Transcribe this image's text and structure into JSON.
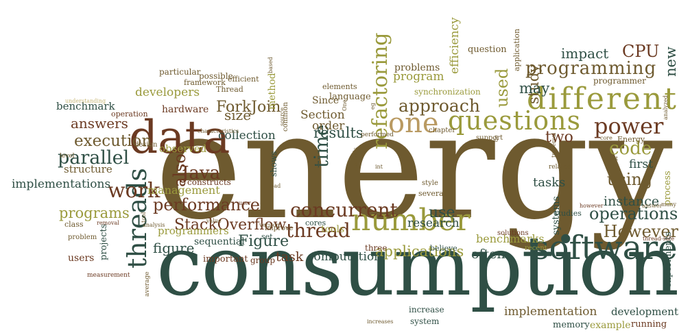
{
  "palette": {
    "brown": "#6e5a2f",
    "green": "#2f4f45",
    "olive": "#9a9a3c",
    "tan": "#b99a62",
    "rust": "#6b3a22",
    "khaki": "#c8b878"
  },
  "words": [
    {
      "text": "energy",
      "c": "brown"
    },
    {
      "text": "consumption",
      "c": "green"
    },
    {
      "text": "data",
      "c": "rust"
    },
    {
      "text": "software",
      "c": "green"
    },
    {
      "text": "number",
      "c": "olive"
    },
    {
      "text": "different",
      "c": "olive"
    },
    {
      "text": "questions",
      "c": "olive"
    },
    {
      "text": "one",
      "c": "tan"
    },
    {
      "text": "threads",
      "c": "green"
    },
    {
      "text": "refactoring",
      "c": "olive"
    },
    {
      "text": "power",
      "c": "rust"
    },
    {
      "text": "concurrent",
      "c": "rust"
    },
    {
      "text": "programming",
      "c": "brown"
    },
    {
      "text": "thread",
      "c": "rust"
    },
    {
      "text": "performance",
      "c": "rust"
    },
    {
      "text": "time",
      "c": "green"
    },
    {
      "text": "approach",
      "c": "brown"
    },
    {
      "text": "code",
      "c": "olive"
    },
    {
      "text": "work",
      "c": "rust"
    },
    {
      "text": "execution",
      "c": "brown"
    },
    {
      "text": "parallel",
      "c": "green"
    },
    {
      "text": "also",
      "c": "rust"
    },
    {
      "text": "StackOverflow",
      "c": "rust"
    },
    {
      "text": "used",
      "c": "olive"
    },
    {
      "text": "study",
      "c": "brown"
    },
    {
      "text": "operations",
      "c": "green"
    },
    {
      "text": "However",
      "c": "brown"
    },
    {
      "text": "using",
      "c": "brown"
    },
    {
      "text": "CPU",
      "c": "rust"
    },
    {
      "text": "impact",
      "c": "green"
    },
    {
      "text": "programs",
      "c": "olive"
    },
    {
      "text": "Java",
      "c": "rust"
    },
    {
      "text": "ForkJoin",
      "c": "brown"
    },
    {
      "text": "results",
      "c": "green"
    },
    {
      "text": "answers",
      "c": "rust"
    },
    {
      "text": "size",
      "c": "brown"
    },
    {
      "text": "Figure",
      "c": "green"
    },
    {
      "text": "figure",
      "c": "green"
    },
    {
      "text": "use",
      "c": "green"
    },
    {
      "text": "instance",
      "c": "green"
    },
    {
      "text": "two",
      "c": "rust"
    },
    {
      "text": "tasks",
      "c": "green"
    },
    {
      "text": "first",
      "c": "green"
    },
    {
      "text": "applications",
      "c": "olive"
    },
    {
      "text": "implementation",
      "c": "brown"
    },
    {
      "text": "computation",
      "c": "green"
    },
    {
      "text": "task",
      "c": "rust"
    },
    {
      "text": "program",
      "c": "olive"
    },
    {
      "text": "developers",
      "c": "olive"
    },
    {
      "text": "implementations",
      "c": "green"
    },
    {
      "text": "management",
      "c": "olive"
    },
    {
      "text": "collection",
      "c": "green"
    },
    {
      "text": "Section",
      "c": "brown"
    },
    {
      "text": "order",
      "c": "brown"
    },
    {
      "text": "may",
      "c": "green"
    },
    {
      "text": "new",
      "c": "green"
    },
    {
      "text": "efficiency",
      "c": "olive"
    },
    {
      "text": "problems",
      "c": "brown"
    },
    {
      "text": "benchmarks",
      "c": "olive"
    },
    {
      "text": "often",
      "c": "green"
    },
    {
      "text": "observed",
      "c": "olive"
    },
    {
      "text": "hardware",
      "c": "rust"
    },
    {
      "text": "benchmark",
      "c": "green"
    },
    {
      "text": "structure",
      "c": "brown"
    },
    {
      "text": "research",
      "c": "green"
    },
    {
      "text": "programmers",
      "c": "olive"
    },
    {
      "text": "sequential",
      "c": "green"
    },
    {
      "text": "users",
      "c": "rust"
    },
    {
      "text": "development",
      "c": "green"
    },
    {
      "text": "memory",
      "c": "green"
    },
    {
      "text": "example",
      "c": "olive"
    },
    {
      "text": "running",
      "c": "rust"
    },
    {
      "text": "experiments",
      "c": "green"
    },
    {
      "text": "process",
      "c": "olive"
    },
    {
      "text": "systems",
      "c": "green"
    },
    {
      "text": "method",
      "c": "olive"
    },
    {
      "text": "tools",
      "c": "olive"
    },
    {
      "text": "application",
      "c": "brown"
    },
    {
      "text": "question",
      "c": "brown"
    },
    {
      "text": "programmer",
      "c": "brown"
    },
    {
      "text": "framework",
      "c": "brown"
    },
    {
      "text": "particular",
      "c": "brown"
    },
    {
      "text": "possible",
      "c": "brown"
    },
    {
      "text": "efficient",
      "c": "brown"
    },
    {
      "text": "Thread",
      "c": "brown"
    },
    {
      "text": "elements",
      "c": "brown"
    },
    {
      "text": "Since",
      "c": "brown"
    },
    {
      "text": "language",
      "c": "brown"
    },
    {
      "text": "synchronization",
      "c": "olive"
    },
    {
      "text": "operation",
      "c": "rust"
    },
    {
      "text": "projects",
      "c": "green"
    },
    {
      "text": "important",
      "c": "rust"
    },
    {
      "text": "group",
      "c": "rust"
    },
    {
      "text": "set",
      "c": "green"
    },
    {
      "text": "three",
      "c": "rust"
    },
    {
      "text": "believe",
      "c": "green"
    },
    {
      "text": "increase",
      "c": "green"
    },
    {
      "text": "system",
      "c": "green"
    },
    {
      "text": "constructs",
      "c": "rust"
    },
    {
      "text": "class",
      "c": "brown"
    },
    {
      "text": "problem",
      "c": "brown"
    },
    {
      "text": "level",
      "c": "brown"
    },
    {
      "text": "design",
      "c": "brown"
    },
    {
      "text": "measurement",
      "c": "rust"
    },
    {
      "text": "average",
      "c": "brown"
    },
    {
      "text": "solutions",
      "c": "rust"
    },
    {
      "text": "recent",
      "c": "olive"
    },
    {
      "text": "studies",
      "c": "green"
    },
    {
      "text": "shows",
      "c": "green"
    },
    {
      "text": "cores",
      "c": "green"
    },
    {
      "text": "common",
      "c": "brown"
    },
    {
      "text": "improve",
      "c": "brown"
    },
    {
      "text": "several",
      "c": "brown"
    },
    {
      "text": "style",
      "c": "brown"
    },
    {
      "text": "chapter",
      "c": "brown"
    },
    {
      "text": "performed",
      "c": "brown"
    },
    {
      "text": "support",
      "c": "brown"
    },
    {
      "text": "Energy",
      "c": "brown"
    },
    {
      "text": "related",
      "c": "brown"
    },
    {
      "text": "understanding",
      "c": "khaki"
    },
    {
      "text": "value",
      "c": "brown"
    },
    {
      "text": "version",
      "c": "brown"
    },
    {
      "text": "removal",
      "c": "rust"
    },
    {
      "text": "analysis",
      "c": "brown"
    },
    {
      "text": "characteristics",
      "c": "brown"
    },
    {
      "text": "based",
      "c": "brown"
    },
    {
      "text": "source",
      "c": "brown"
    },
    {
      "text": "increases",
      "c": "brown"
    },
    {
      "text": "analyzed",
      "c": "brown"
    },
    {
      "text": "many",
      "c": "brown"
    },
    {
      "text": "however",
      "c": "rust"
    },
    {
      "text": "answer",
      "c": "brown"
    },
    {
      "text": "core",
      "c": "brown"
    },
    {
      "text": "part",
      "c": "brown"
    },
    {
      "text": "int",
      "c": "brown"
    },
    {
      "text": "methods",
      "c": "brown"
    },
    {
      "text": "user",
      "c": "rust"
    },
    {
      "text": "thread-safe",
      "c": "rust"
    },
    {
      "text": "tool",
      "c": "brown"
    },
    {
      "text": "de",
      "c": "brown"
    },
    {
      "text": "load",
      "c": "brown"
    },
    {
      "text": "similar",
      "c": "brown"
    },
    {
      "text": "traversal",
      "c": "brown"
    },
    {
      "text": "eg",
      "c": "brown"
    },
    {
      "text": "One",
      "c": "brown"
    }
  ]
}
